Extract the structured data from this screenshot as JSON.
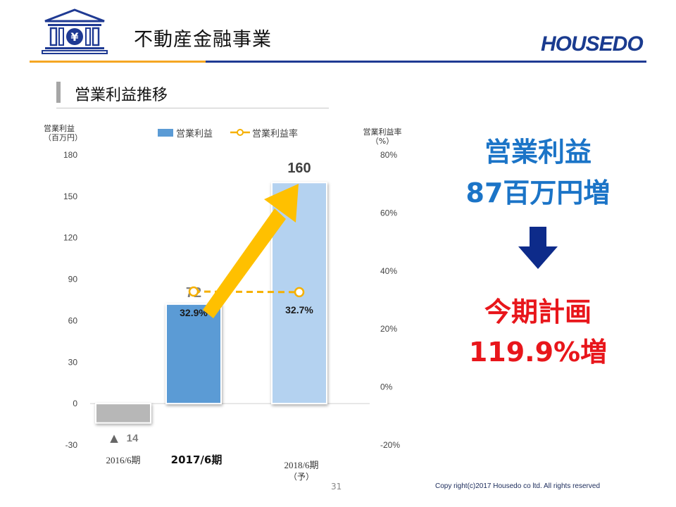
{
  "header": {
    "title": "不動産金融事業",
    "logo_text": "HOUSEDO",
    "icon": "bank-yen-icon"
  },
  "section": {
    "title": "営業利益推移"
  },
  "chart_data": {
    "type": "bar",
    "categories": [
      "2016/6期",
      "2017/6期",
      "2018/6期\n（予）"
    ],
    "category_labels": [
      "2016/6期",
      "2017/6期",
      "2018/6期",
      "（予）"
    ],
    "series": [
      {
        "name": "営業利益",
        "type": "bar",
        "values": [
          -14,
          72,
          160
        ],
        "colors": [
          "#b7b7b7",
          "#5b9bd5",
          "#b4d2f0"
        ],
        "axis": "left"
      },
      {
        "name": "営業利益率",
        "type": "line",
        "values": [
          null,
          32.9,
          32.7
        ],
        "color": "#f5b000",
        "style": "dashed",
        "axis": "right"
      }
    ],
    "left_axis": {
      "label_line1": "営業利益",
      "label_line2": "（百万円）",
      "ylim": [
        -30,
        180
      ],
      "ticks": [
        180,
        150,
        120,
        90,
        60,
        30,
        0,
        -30
      ]
    },
    "right_axis": {
      "label_line1": "営業利益率",
      "label_line2": "（%）",
      "ylim": [
        -20,
        80
      ],
      "ticks": [
        "80%",
        "60%",
        "40%",
        "20%",
        "0%",
        "-20%"
      ],
      "tick_values": [
        80,
        60,
        40,
        20,
        0,
        -20
      ]
    },
    "bar_labels": [
      "▲ 14",
      "72",
      "160"
    ],
    "rate_labels": [
      "32.9%",
      "32.7%"
    ],
    "legend_position": "top"
  },
  "callouts": {
    "line1": "営業利益",
    "line2": "87百万円増",
    "arrow_icon": "down-arrow-icon",
    "line3": "今期計画",
    "line4": "119.9%増"
  },
  "footer": {
    "page_number": "31",
    "copyright": "Copy right(c)2017 Housedo co ltd. All rights reserved"
  },
  "colors": {
    "accent_orange": "#f5a623",
    "navy": "#1f3a93",
    "callout_blue": "#1b74c7",
    "callout_red": "#e8161b",
    "arrow_yellow": "#ffc000"
  }
}
